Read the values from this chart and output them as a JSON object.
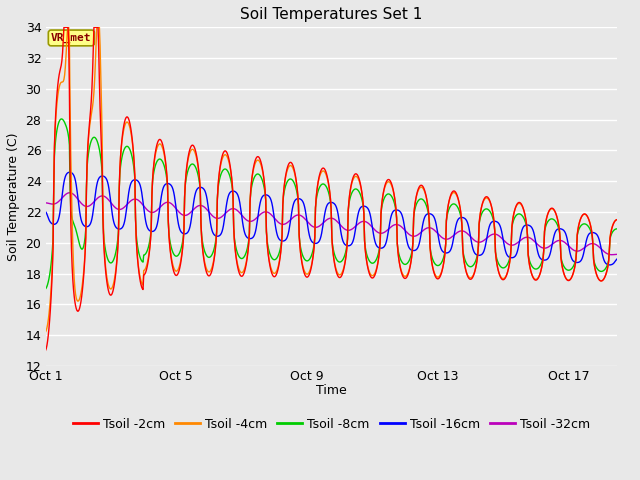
{
  "title": "Soil Temperatures Set 1",
  "xlabel": "Time",
  "ylabel": "Soil Temperature (C)",
  "ylim": [
    12,
    34
  ],
  "yticks": [
    12,
    14,
    16,
    18,
    20,
    22,
    24,
    26,
    28,
    30,
    32,
    34
  ],
  "xlim": [
    0,
    17.5
  ],
  "xtick_positions": [
    0,
    4,
    8,
    12,
    16
  ],
  "xtick_labels": [
    "Oct 1",
    "Oct 5",
    "Oct 9",
    "Oct 13",
    "Oct 17"
  ],
  "background_color": "#e8e8e8",
  "plot_bg_color": "#e8e8e8",
  "grid_color": "#ffffff",
  "legend_labels": [
    "Tsoil -2cm",
    "Tsoil -4cm",
    "Tsoil -8cm",
    "Tsoil -16cm",
    "Tsoil -32cm"
  ],
  "line_colors": [
    "#ff0000",
    "#ff8800",
    "#00cc00",
    "#0000ff",
    "#bb00bb"
  ],
  "annotation_text": "VR_met",
  "annotation_color": "#880000",
  "annotation_bg": "#ffff88",
  "annotation_border": "#999900",
  "title_fontsize": 11,
  "axis_fontsize": 9,
  "legend_fontsize": 9
}
